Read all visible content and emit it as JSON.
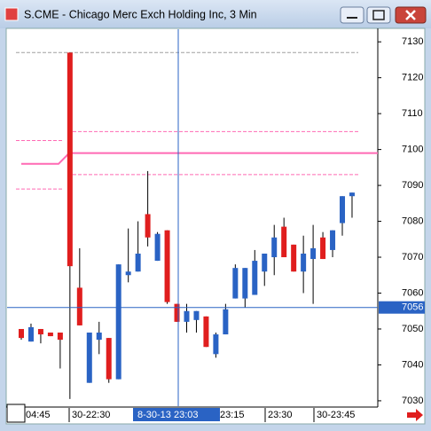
{
  "window_title": "S.CME - Chicago Merc Exch Holding Inc, 3 Min",
  "chart_data": {
    "type": "candlestick",
    "open": [
      7050,
      7046.5,
      7050,
      7049,
      7049,
      7127,
      7061.5,
      7035,
      7047,
      7047.5,
      7036,
      7065,
      7066,
      7082,
      7069,
      7077.5,
      7057,
      7052,
      7052.5,
      7053.5,
      7043,
      7048.5,
      7058.5,
      7058.5,
      7059.5,
      7066,
      7070,
      7078.5,
      7073.5,
      7066,
      7069.5,
      7075.5,
      7072,
      7079.5,
      7087
    ],
    "high": [
      7050,
      7051.5,
      7050,
      7049,
      7049,
      7127,
      7072.5,
      7049,
      7052,
      7047.5,
      7068,
      7078,
      7080,
      7094,
      7077,
      7077.5,
      7057,
      7057,
      7055,
      7053.5,
      7049,
      7057,
      7068,
      7067,
      7072,
      7071,
      7079,
      7081,
      7073.5,
      7076,
      7079,
      7077,
      7077.5,
      7087,
      7088
    ],
    "low": [
      7047,
      7046.5,
      7046,
      7048,
      7039,
      7030.5,
      7051,
      7035,
      7043,
      7035,
      7036,
      7063,
      7066,
      7073,
      7069,
      7057,
      7052,
      7049,
      7049,
      7045,
      7042,
      7048.5,
      7058.5,
      7056,
      7059.5,
      7062,
      7065,
      7070,
      7066,
      7060,
      7057,
      7069.5,
      7070,
      7076,
      7081
    ],
    "close": [
      7047.5,
      7050.5,
      7048.5,
      7048,
      7047,
      7067.5,
      7051,
      7049,
      7049,
      7036,
      7068,
      7066,
      7071,
      7075.5,
      7076.5,
      7057.5,
      7052,
      7055,
      7055,
      7045,
      7048.5,
      7055.5,
      7067,
      7067,
      7069,
      7071,
      7075.5,
      7070,
      7066,
      7071,
      7072.5,
      7069.5,
      7077.5,
      7087,
      7088
    ],
    "up_color": "#2a63c4",
    "down_color": "#e01e1e",
    "ylim": [
      7028.5,
      7133.5
    ],
    "yticks": [
      7030,
      7040,
      7050,
      7060,
      7070,
      7080,
      7090,
      7100,
      7110,
      7120,
      7130
    ],
    "x_labels": [
      "04:45",
      "30-22:30",
      "8-30-13 23:03",
      "23:15",
      "23:30",
      "30-23:45"
    ],
    "reference_lines": [
      {
        "value": 7127,
        "color": "#a0a0a0"
      },
      {
        "value": 7102.5,
        "color": "#ff69b4"
      },
      {
        "value": 7089,
        "color": "#ff69b4"
      },
      {
        "value": 7105,
        "color": "#ff69b4"
      },
      {
        "value": 7093,
        "color": "#ff69b4"
      }
    ],
    "level_line": {
      "values": [
        7096,
        7099
      ],
      "color": "#ff69b4"
    },
    "crosshair": {
      "y": 7056,
      "color": "#2a63c4"
    }
  }
}
